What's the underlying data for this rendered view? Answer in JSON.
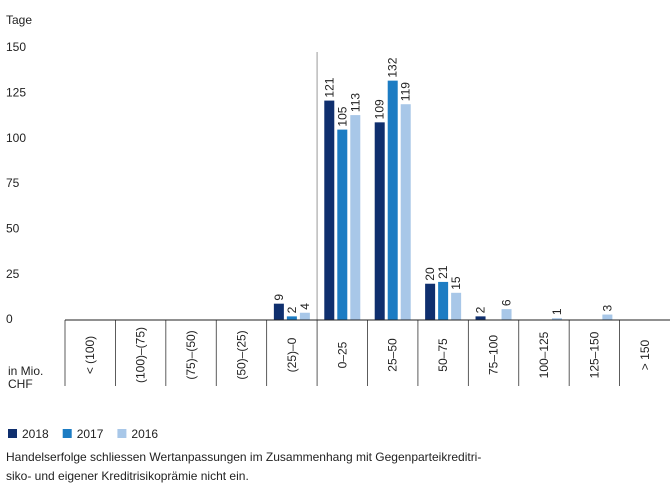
{
  "chart_data": {
    "type": "bar",
    "y_axis_label": "Tage",
    "x_axis_label": "in Mio. CHF",
    "categories": [
      "< (100)",
      "(100)–(75)",
      "(75)–(50)",
      "(50)–(25)",
      "(25)–0",
      "0–25",
      "25–50",
      "50–75",
      "75–100",
      "100–125",
      "125–150",
      "> 150"
    ],
    "series": [
      {
        "name": "2018",
        "color": "#0f2f6e",
        "values": [
          null,
          null,
          null,
          null,
          9,
          121,
          109,
          20,
          2,
          null,
          null,
          null
        ]
      },
      {
        "name": "2017",
        "color": "#1c7cc3",
        "values": [
          null,
          null,
          null,
          null,
          2,
          105,
          132,
          21,
          null,
          null,
          null,
          null
        ]
      },
      {
        "name": "2016",
        "color": "#a8c7e8",
        "values": [
          null,
          null,
          null,
          null,
          4,
          113,
          119,
          15,
          6,
          1,
          3,
          null
        ]
      }
    ],
    "ylim": [
      0,
      150
    ],
    "yticks": [
      0,
      25,
      50,
      75,
      100,
      125,
      150
    ],
    "notes": [
      "Handelserfolge schliessen Wertanpassungen im Zusammenhang mit Gegenparteikreditri-",
      "siko- und eigener Kreditrisikoprämie nicht ein."
    ]
  }
}
